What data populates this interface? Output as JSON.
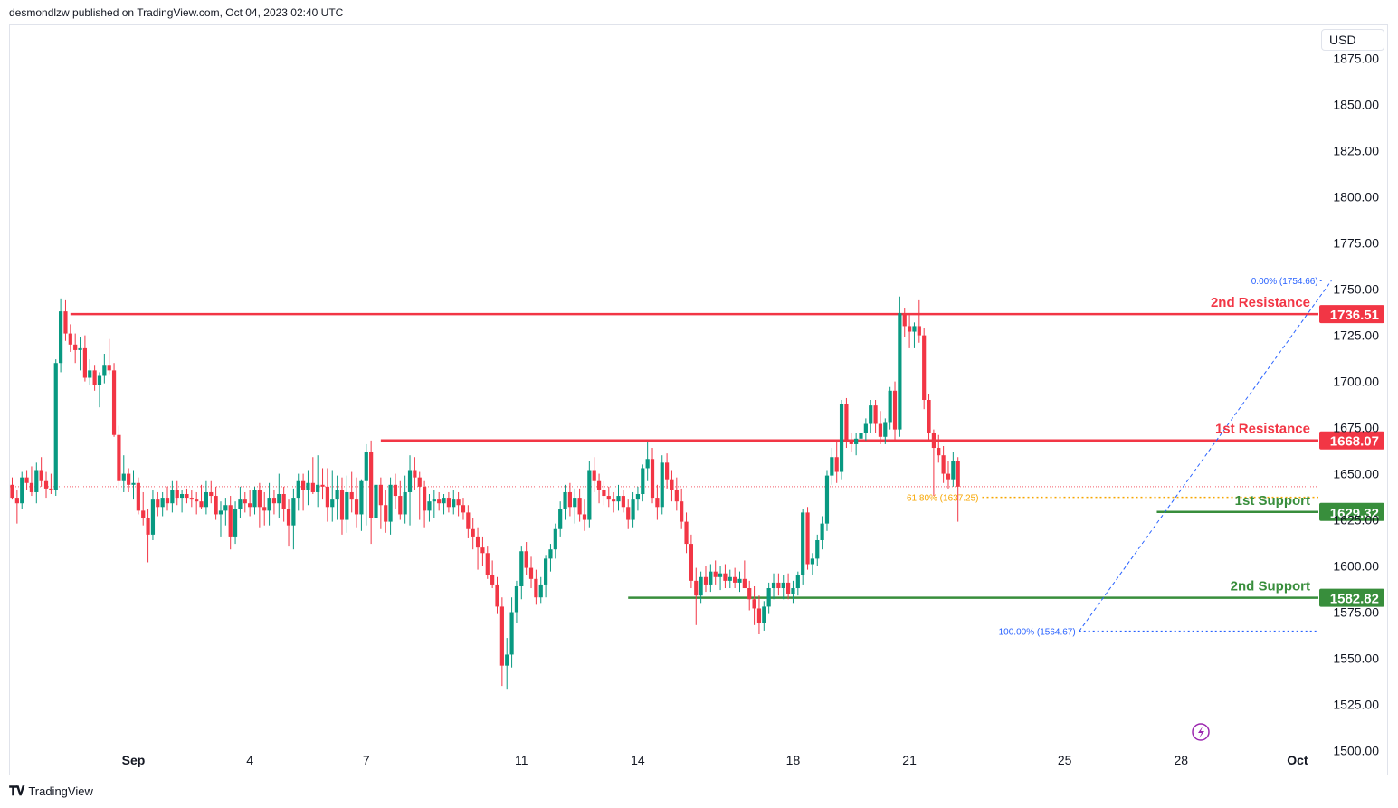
{
  "header": {
    "text": "desmondlzw published on TradingView.com, Oct 04, 2023 02:40 UTC"
  },
  "currency": "USD",
  "footer": {
    "brand": "TradingView"
  },
  "colors": {
    "up": "#089981",
    "down": "#f23645",
    "resistance": "#f23645",
    "support": "#388e3c",
    "fib": "#2962ff",
    "fib618": "#f7a600",
    "lastprice": "#f23645"
  },
  "chart_data": {
    "type": "candlestick",
    "y_axis": {
      "min": 1487,
      "max": 1893,
      "ticks": [
        1875,
        1850,
        1825,
        1800,
        1775,
        1750,
        1725,
        1700,
        1675,
        1650,
        1625,
        1600,
        1575,
        1550,
        1525,
        1500
      ]
    },
    "x_ticks": [
      {
        "label": "Sep",
        "bold": true,
        "index": 25
      },
      {
        "label": "4",
        "bold": false,
        "index": 49
      },
      {
        "label": "7",
        "bold": false,
        "index": 73
      },
      {
        "label": "11",
        "bold": false,
        "index": 105
      },
      {
        "label": "14",
        "bold": false,
        "index": 129
      },
      {
        "label": "18",
        "bold": false,
        "index": 161
      },
      {
        "label": "21",
        "bold": false,
        "index": 185
      },
      {
        "label": "25",
        "bold": false,
        "index": 217
      },
      {
        "label": "28",
        "bold": false,
        "index": 241
      },
      {
        "label": "Oct",
        "bold": true,
        "index": 265
      },
      {
        "label": "4",
        "bold": false,
        "index": 289
      }
    ],
    "levels": [
      {
        "name": "2nd Resistance",
        "value": "1736.51",
        "price": 1736.51,
        "kind": "resistance",
        "start_index": 12
      },
      {
        "name": "1st Resistance",
        "value": "1668.07",
        "price": 1668.07,
        "kind": "resistance",
        "start_index": 76
      },
      {
        "name": "1st Support",
        "value": "1629.32",
        "price": 1629.32,
        "kind": "support",
        "start_index": 236
      },
      {
        "name": "2nd Support",
        "value": "1582.82",
        "price": 1582.82,
        "kind": "support",
        "start_index": 127
      }
    ],
    "fib": [
      {
        "label": "0.00% (1754.66)",
        "price": 1754.66,
        "start_index": 270
      },
      {
        "label": "61.80% (1637.25)",
        "price": 1637.25,
        "start_index": 200
      },
      {
        "label": "100.00% (1564.67)",
        "price": 1564.67,
        "start_index": 220
      }
    ],
    "fib_trend": {
      "from_index": 220,
      "from_price": 1564.67,
      "to_index": 272,
      "to_price": 1754.66
    },
    "last_close": 1643,
    "candles": [
      [
        1644,
        1648,
        1636,
        1637
      ],
      [
        1637,
        1641,
        1623,
        1634
      ],
      [
        1634,
        1651,
        1631,
        1648
      ],
      [
        1648,
        1652,
        1641,
        1645
      ],
      [
        1645,
        1654,
        1638,
        1640
      ],
      [
        1640,
        1656,
        1634,
        1652
      ],
      [
        1652,
        1659,
        1643,
        1646
      ],
      [
        1646,
        1651,
        1637,
        1642
      ],
      [
        1642,
        1650,
        1639,
        1641
      ],
      [
        1641,
        1712,
        1638,
        1710
      ],
      [
        1710,
        1745,
        1705,
        1738
      ],
      [
        1738,
        1744,
        1722,
        1726
      ],
      [
        1726,
        1731,
        1716,
        1720
      ],
      [
        1720,
        1726,
        1710,
        1717
      ],
      [
        1717,
        1724,
        1706,
        1718
      ],
      [
        1718,
        1725,
        1700,
        1702
      ],
      [
        1702,
        1712,
        1698,
        1706
      ],
      [
        1706,
        1709,
        1695,
        1698
      ],
      [
        1698,
        1705,
        1686,
        1703
      ],
      [
        1703,
        1715,
        1699,
        1709
      ],
      [
        1709,
        1723,
        1704,
        1706
      ],
      [
        1706,
        1710,
        1670,
        1671
      ],
      [
        1671,
        1676,
        1641,
        1646
      ],
      [
        1646,
        1660,
        1640,
        1650
      ],
      [
        1650,
        1653,
        1640,
        1644
      ],
      [
        1644,
        1652,
        1636,
        1645
      ],
      [
        1645,
        1648,
        1628,
        1630
      ],
      [
        1630,
        1640,
        1622,
        1626
      ],
      [
        1626,
        1631,
        1602,
        1617
      ],
      [
        1617,
        1641,
        1614,
        1636
      ],
      [
        1636,
        1640,
        1627,
        1632
      ],
      [
        1632,
        1640,
        1627,
        1637
      ],
      [
        1637,
        1643,
        1630,
        1634
      ],
      [
        1634,
        1646,
        1629,
        1641
      ],
      [
        1641,
        1646,
        1633,
        1637
      ],
      [
        1637,
        1641,
        1629,
        1639
      ],
      [
        1639,
        1642,
        1634,
        1637
      ],
      [
        1637,
        1641,
        1632,
        1636
      ],
      [
        1636,
        1640,
        1628,
        1635
      ],
      [
        1635,
        1644,
        1631,
        1632
      ],
      [
        1632,
        1646,
        1628,
        1640
      ],
      [
        1640,
        1646,
        1634,
        1638
      ],
      [
        1638,
        1643,
        1625,
        1628
      ],
      [
        1628,
        1635,
        1616,
        1630
      ],
      [
        1630,
        1637,
        1622,
        1633
      ],
      [
        1633,
        1638,
        1609,
        1616
      ],
      [
        1616,
        1635,
        1612,
        1631
      ],
      [
        1631,
        1643,
        1626,
        1636
      ],
      [
        1636,
        1640,
        1629,
        1634
      ],
      [
        1634,
        1641,
        1627,
        1632
      ],
      [
        1632,
        1643,
        1628,
        1641
      ],
      [
        1641,
        1645,
        1621,
        1632
      ],
      [
        1632,
        1640,
        1622,
        1630
      ],
      [
        1630,
        1645,
        1622,
        1637
      ],
      [
        1637,
        1641,
        1628,
        1634
      ],
      [
        1634,
        1650,
        1626,
        1639
      ],
      [
        1639,
        1643,
        1624,
        1631
      ],
      [
        1631,
        1636,
        1611,
        1622
      ],
      [
        1622,
        1642,
        1609,
        1637
      ],
      [
        1637,
        1650,
        1630,
        1646
      ],
      [
        1646,
        1650,
        1630,
        1641
      ],
      [
        1641,
        1652,
        1633,
        1645
      ],
      [
        1645,
        1659,
        1639,
        1640
      ],
      [
        1640,
        1660,
        1632,
        1644
      ],
      [
        1644,
        1653,
        1636,
        1643
      ],
      [
        1643,
        1653,
        1624,
        1632
      ],
      [
        1632,
        1652,
        1624,
        1636
      ],
      [
        1636,
        1649,
        1625,
        1641
      ],
      [
        1641,
        1648,
        1617,
        1625
      ],
      [
        1625,
        1649,
        1618,
        1640
      ],
      [
        1640,
        1651,
        1629,
        1636
      ],
      [
        1636,
        1648,
        1621,
        1628
      ],
      [
        1628,
        1647,
        1619,
        1646
      ],
      [
        1646,
        1666,
        1622,
        1662
      ],
      [
        1662,
        1668,
        1612,
        1626
      ],
      [
        1626,
        1649,
        1624,
        1644
      ],
      [
        1644,
        1648,
        1620,
        1633
      ],
      [
        1633,
        1641,
        1618,
        1624
      ],
      [
        1624,
        1648,
        1617,
        1644
      ],
      [
        1644,
        1650,
        1631,
        1638
      ],
      [
        1638,
        1646,
        1625,
        1628
      ],
      [
        1628,
        1649,
        1623,
        1640
      ],
      [
        1640,
        1660,
        1622,
        1652
      ],
      [
        1652,
        1659,
        1641,
        1648
      ],
      [
        1648,
        1651,
        1625,
        1643
      ],
      [
        1643,
        1646,
        1621,
        1630
      ],
      [
        1630,
        1639,
        1624,
        1635
      ],
      [
        1635,
        1641,
        1626,
        1636
      ],
      [
        1636,
        1640,
        1630,
        1634
      ],
      [
        1634,
        1639,
        1628,
        1637
      ],
      [
        1637,
        1640,
        1629,
        1632
      ],
      [
        1632,
        1641,
        1628,
        1636
      ],
      [
        1636,
        1640,
        1627,
        1633
      ],
      [
        1633,
        1637,
        1625,
        1629
      ],
      [
        1629,
        1633,
        1615,
        1620
      ],
      [
        1620,
        1626,
        1609,
        1616
      ],
      [
        1616,
        1621,
        1598,
        1610
      ],
      [
        1610,
        1616,
        1600,
        1607
      ],
      [
        1607,
        1611,
        1593,
        1595
      ],
      [
        1595,
        1603,
        1588,
        1590
      ],
      [
        1590,
        1594,
        1574,
        1578
      ],
      [
        1578,
        1583,
        1535,
        1546
      ],
      [
        1546,
        1561,
        1533,
        1552
      ],
      [
        1552,
        1583,
        1545,
        1575
      ],
      [
        1575,
        1592,
        1569,
        1589
      ],
      [
        1589,
        1611,
        1582,
        1608
      ],
      [
        1608,
        1613,
        1595,
        1599
      ],
      [
        1599,
        1605,
        1588,
        1593
      ],
      [
        1593,
        1598,
        1579,
        1583
      ],
      [
        1583,
        1594,
        1580,
        1590
      ],
      [
        1590,
        1606,
        1583,
        1604
      ],
      [
        1604,
        1612,
        1597,
        1609
      ],
      [
        1609,
        1623,
        1604,
        1620
      ],
      [
        1620,
        1635,
        1616,
        1631
      ],
      [
        1631,
        1644,
        1625,
        1640
      ],
      [
        1640,
        1645,
        1627,
        1632
      ],
      [
        1632,
        1642,
        1623,
        1637
      ],
      [
        1637,
        1642,
        1624,
        1628
      ],
      [
        1628,
        1636,
        1619,
        1625
      ],
      [
        1625,
        1657,
        1621,
        1652
      ],
      [
        1652,
        1659,
        1640,
        1646
      ],
      [
        1646,
        1650,
        1634,
        1641
      ],
      [
        1641,
        1646,
        1633,
        1638
      ],
      [
        1638,
        1643,
        1632,
        1636
      ],
      [
        1636,
        1640,
        1629,
        1635
      ],
      [
        1635,
        1644,
        1630,
        1638
      ],
      [
        1638,
        1641,
        1629,
        1632
      ],
      [
        1632,
        1636,
        1620,
        1625
      ],
      [
        1625,
        1640,
        1621,
        1636
      ],
      [
        1636,
        1643,
        1630,
        1639
      ],
      [
        1639,
        1655,
        1635,
        1653
      ],
      [
        1653,
        1667,
        1646,
        1658
      ],
      [
        1658,
        1664,
        1634,
        1637
      ],
      [
        1637,
        1644,
        1625,
        1632
      ],
      [
        1632,
        1660,
        1628,
        1656
      ],
      [
        1656,
        1661,
        1642,
        1647
      ],
      [
        1647,
        1652,
        1635,
        1641
      ],
      [
        1641,
        1648,
        1630,
        1635
      ],
      [
        1635,
        1642,
        1620,
        1624
      ],
      [
        1624,
        1629,
        1607,
        1612
      ],
      [
        1612,
        1617,
        1588,
        1592
      ],
      [
        1592,
        1599,
        1568,
        1584
      ],
      [
        1584,
        1597,
        1580,
        1594
      ],
      [
        1594,
        1600,
        1586,
        1590
      ],
      [
        1590,
        1601,
        1586,
        1597
      ],
      [
        1597,
        1603,
        1590,
        1594
      ],
      [
        1594,
        1600,
        1587,
        1596
      ],
      [
        1596,
        1601,
        1588,
        1592
      ],
      [
        1592,
        1598,
        1588,
        1594
      ],
      [
        1594,
        1599,
        1588,
        1591
      ],
      [
        1591,
        1597,
        1586,
        1593
      ],
      [
        1593,
        1603,
        1588,
        1588
      ],
      [
        1588,
        1592,
        1576,
        1582
      ],
      [
        1582,
        1589,
        1568,
        1577
      ],
      [
        1577,
        1584,
        1563,
        1569
      ],
      [
        1569,
        1581,
        1565,
        1578
      ],
      [
        1578,
        1591,
        1574,
        1588
      ],
      [
        1588,
        1596,
        1582,
        1591
      ],
      [
        1591,
        1596,
        1584,
        1588
      ],
      [
        1588,
        1595,
        1582,
        1591
      ],
      [
        1591,
        1596,
        1582,
        1585
      ],
      [
        1585,
        1592,
        1580,
        1588
      ],
      [
        1588,
        1597,
        1584,
        1595
      ],
      [
        1595,
        1631,
        1590,
        1629
      ],
      [
        1629,
        1632,
        1598,
        1601
      ],
      [
        1601,
        1607,
        1595,
        1604
      ],
      [
        1604,
        1617,
        1600,
        1614
      ],
      [
        1614,
        1627,
        1609,
        1623
      ],
      [
        1623,
        1652,
        1619,
        1649
      ],
      [
        1649,
        1664,
        1644,
        1659
      ],
      [
        1659,
        1667,
        1645,
        1651
      ],
      [
        1651,
        1690,
        1647,
        1688
      ],
      [
        1688,
        1691,
        1664,
        1668
      ],
      [
        1668,
        1672,
        1662,
        1666
      ],
      [
        1666,
        1672,
        1660,
        1669
      ],
      [
        1669,
        1675,
        1664,
        1672
      ],
      [
        1672,
        1680,
        1668,
        1677
      ],
      [
        1677,
        1690,
        1672,
        1687
      ],
      [
        1687,
        1690,
        1672,
        1677
      ],
      [
        1677,
        1684,
        1666,
        1670
      ],
      [
        1670,
        1680,
        1666,
        1678
      ],
      [
        1678,
        1697,
        1674,
        1695
      ],
      [
        1695,
        1700,
        1668,
        1674
      ],
      [
        1674,
        1746,
        1670,
        1737
      ],
      [
        1737,
        1740,
        1724,
        1730
      ],
      [
        1730,
        1736,
        1718,
        1727
      ],
      [
        1727,
        1732,
        1718,
        1730
      ],
      [
        1730,
        1744,
        1721,
        1725
      ],
      [
        1725,
        1729,
        1685,
        1690
      ],
      [
        1690,
        1693,
        1668,
        1672
      ],
      [
        1672,
        1674,
        1638,
        1664
      ],
      [
        1664,
        1671,
        1656,
        1660
      ],
      [
        1660,
        1665,
        1645,
        1650
      ],
      [
        1650,
        1657,
        1642,
        1647
      ],
      [
        1647,
        1662,
        1643,
        1657
      ],
      [
        1657,
        1659,
        1624,
        1643
      ]
    ]
  }
}
